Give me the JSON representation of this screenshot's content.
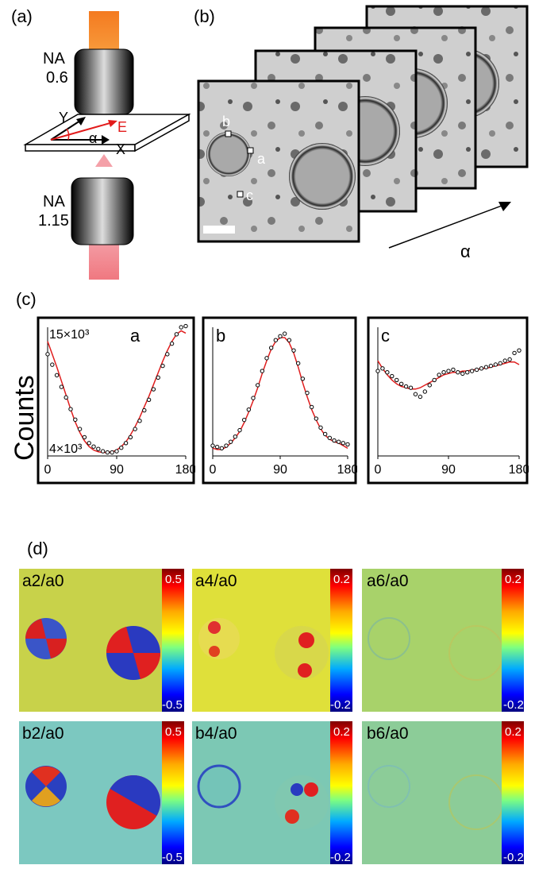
{
  "panels": {
    "a": {
      "label": "(a)",
      "top_objective": {
        "line1": "NA",
        "line2": "0.6"
      },
      "bottom_objective": {
        "line1": "NA",
        "line2": "1.15"
      },
      "axes": {
        "y": "Y",
        "x": "X",
        "e": "E",
        "alpha": "α"
      }
    },
    "b": {
      "label": "(b)",
      "point_labels": [
        "b",
        "a",
        "c"
      ],
      "alpha_arrow": "α"
    },
    "c": {
      "label": "(c)",
      "ylabel": "Counts"
    },
    "d": {
      "label": "(d)",
      "maps": [
        {
          "title": "a2/a0",
          "cb_max": "0.5",
          "cb_min": "-0.5"
        },
        {
          "title": "a4/a0",
          "cb_max": "0.2",
          "cb_min": "-0.2"
        },
        {
          "title": "a6/a0",
          "cb_max": "0.2",
          "cb_min": "-0.2"
        },
        {
          "title": "b2/a0",
          "cb_max": "0.5",
          "cb_min": "-0.5"
        },
        {
          "title": "b4/a0",
          "cb_max": "0.2",
          "cb_min": "-0.2"
        },
        {
          "title": "b6/a0",
          "cb_max": "0.2",
          "cb_min": "-0.2"
        }
      ]
    }
  },
  "chart_data": [
    {
      "type": "scatter",
      "panel_title": "a",
      "ytick_top": "15×10³",
      "ytick_bottom": "4×10³",
      "xticks": [
        "0",
        "90",
        "180"
      ],
      "xlim": [
        0,
        180
      ],
      "ylim": [
        4000,
        15000
      ],
      "points_x": [
        0,
        6,
        12,
        18,
        24,
        30,
        36,
        42,
        48,
        54,
        60,
        66,
        72,
        78,
        84,
        90,
        96,
        102,
        108,
        114,
        120,
        126,
        132,
        138,
        144,
        150,
        156,
        162,
        168,
        174,
        180
      ],
      "points_y": [
        12700,
        11800,
        10900,
        9900,
        9000,
        8000,
        7100,
        6300,
        5600,
        5100,
        4800,
        4600,
        4400,
        4300,
        4300,
        4400,
        4700,
        5100,
        5600,
        6300,
        7000,
        7900,
        8800,
        9700,
        10700,
        11700,
        12700,
        13600,
        14400,
        15000,
        15100
      ],
      "fit_y": [
        13800,
        12700,
        11600,
        10400,
        9200,
        8000,
        6900,
        6000,
        5300,
        4800,
        4500,
        4350,
        4300,
        4300,
        4350,
        4500,
        4800,
        5200,
        5800,
        6500,
        7300,
        8200,
        9100,
        10100,
        11100,
        12100,
        13000,
        13800,
        14400,
        14700,
        14500
      ]
    },
    {
      "type": "scatter",
      "panel_title": "b",
      "xticks": [
        "0",
        "90",
        "180"
      ],
      "xlim": [
        0,
        180
      ],
      "ylim": [
        0,
        100
      ],
      "points_x": [
        0,
        6,
        12,
        18,
        24,
        30,
        36,
        42,
        48,
        54,
        60,
        66,
        72,
        78,
        84,
        90,
        96,
        102,
        108,
        114,
        120,
        126,
        132,
        138,
        144,
        150,
        156,
        162,
        168,
        174,
        180
      ],
      "points_y": [
        8,
        7,
        6,
        8,
        11,
        15,
        20,
        28,
        36,
        45,
        55,
        66,
        76,
        84,
        90,
        93,
        95,
        90,
        82,
        72,
        60,
        49,
        38,
        29,
        22,
        17,
        14,
        12,
        11,
        10,
        9
      ],
      "fit_y": [
        6,
        5,
        5,
        7,
        10,
        14,
        19,
        26,
        34,
        43,
        53,
        64,
        74,
        83,
        89,
        92,
        92,
        88,
        80,
        69,
        57,
        46,
        36,
        28,
        21,
        16,
        13,
        11,
        10,
        8,
        6
      ]
    },
    {
      "type": "scatter",
      "panel_title": "c",
      "xticks": [
        "0",
        "90",
        "180"
      ],
      "xlim": [
        0,
        180
      ],
      "ylim": [
        0,
        100
      ],
      "points_x": [
        0,
        6,
        12,
        18,
        24,
        30,
        36,
        42,
        48,
        54,
        60,
        66,
        72,
        78,
        84,
        90,
        96,
        102,
        108,
        114,
        120,
        126,
        132,
        138,
        144,
        150,
        156,
        162,
        168,
        174,
        180
      ],
      "points_y": [
        66,
        68,
        65,
        62,
        59,
        56,
        54,
        53,
        48,
        46,
        50,
        55,
        59,
        63,
        65,
        66,
        67,
        65,
        64,
        65,
        66,
        67,
        68,
        69,
        70,
        71,
        72,
        74,
        75,
        80,
        82
      ],
      "fit_y": [
        74,
        68,
        63,
        59,
        56,
        54,
        53,
        52,
        52,
        53,
        55,
        57,
        59,
        61,
        63,
        64,
        65,
        65,
        66,
        66,
        67,
        67,
        68,
        68,
        69,
        70,
        71,
        72,
        73,
        73,
        71
      ]
    }
  ]
}
